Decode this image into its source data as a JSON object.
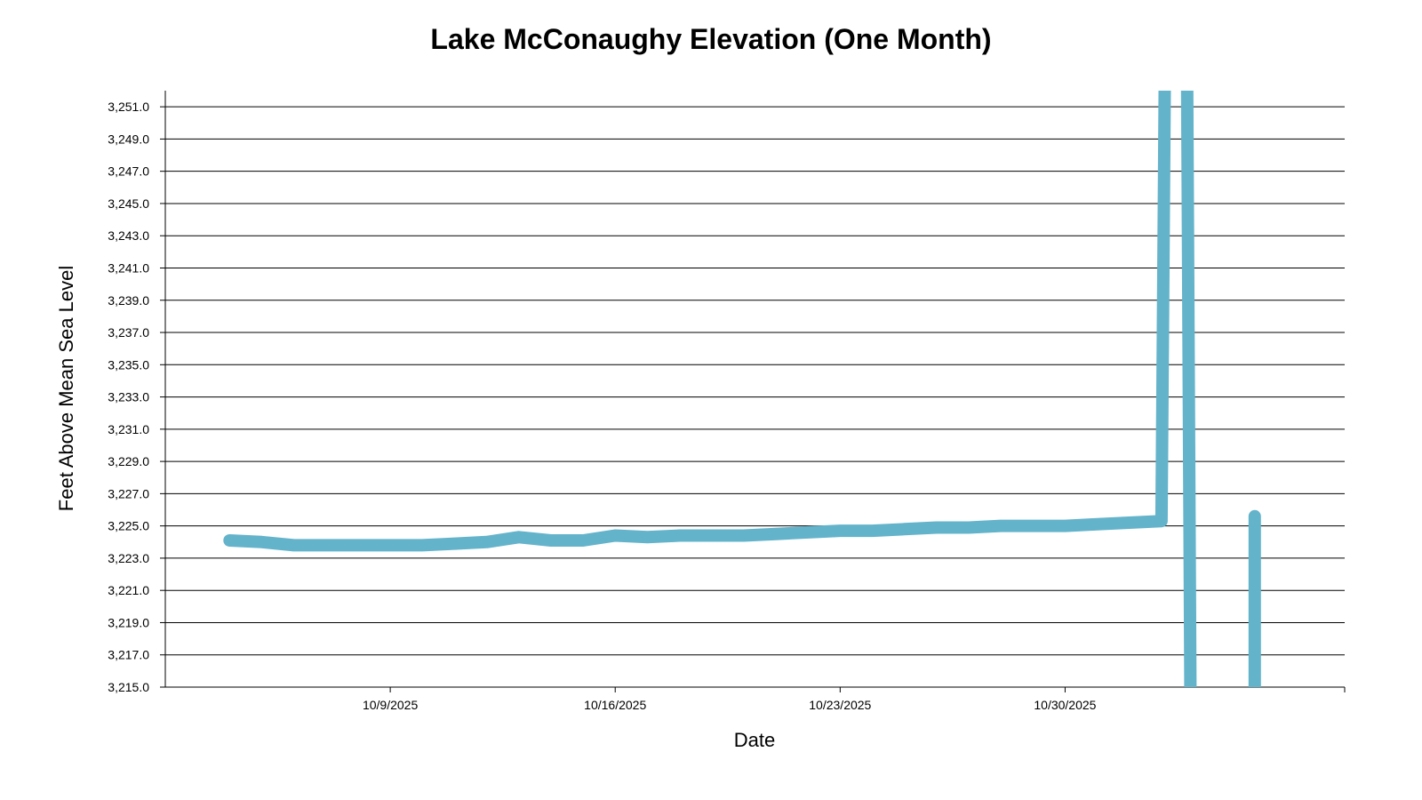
{
  "chart_data": {
    "type": "line",
    "title": "Lake McConaughy Elevation (One Month)",
    "xlabel": "Date",
    "ylabel": "Feet Above Mean Sea Level",
    "x_start": "10/2/2025",
    "x_range_days": [
      0,
      36.7
    ],
    "ylim": [
      3215.0,
      3252.0
    ],
    "yticks": [
      3215.0,
      3217.0,
      3219.0,
      3221.0,
      3223.0,
      3225.0,
      3227.0,
      3229.0,
      3231.0,
      3233.0,
      3235.0,
      3237.0,
      3239.0,
      3241.0,
      3243.0,
      3245.0,
      3247.0,
      3249.0,
      3251.0
    ],
    "ytick_labels": [
      "3,215.0",
      "3,217.0",
      "3,219.0",
      "3,221.0",
      "3,223.0",
      "3,225.0",
      "3,227.0",
      "3,229.0",
      "3,231.0",
      "3,233.0",
      "3,235.0",
      "3,237.0",
      "3,239.0",
      "3,241.0",
      "3,243.0",
      "3,245.0",
      "3,247.0",
      "3,249.0",
      "3,251.0"
    ],
    "xticks": [
      7,
      14,
      21,
      28
    ],
    "xtick_labels": [
      "10/9/2025",
      "10/16/2025",
      "10/23/2025",
      "10/30/2025"
    ],
    "grid": true,
    "color": "#63B3CB",
    "series": [
      {
        "name": "Elevation",
        "segments": [
          [
            [
              2.0,
              3224.1
            ],
            [
              3.0,
              3224.0
            ],
            [
              4.0,
              3223.8
            ],
            [
              5.0,
              3223.8
            ],
            [
              6.0,
              3223.8
            ],
            [
              7.0,
              3223.8
            ],
            [
              8.0,
              3223.8
            ],
            [
              9.0,
              3223.9
            ],
            [
              10.0,
              3224.0
            ],
            [
              11.0,
              3224.3
            ],
            [
              12.0,
              3224.1
            ],
            [
              13.0,
              3224.1
            ],
            [
              14.0,
              3224.4
            ],
            [
              15.0,
              3224.3
            ],
            [
              16.0,
              3224.4
            ],
            [
              17.0,
              3224.4
            ],
            [
              18.0,
              3224.4
            ],
            [
              19.0,
              3224.5
            ],
            [
              20.0,
              3224.6
            ],
            [
              21.0,
              3224.7
            ],
            [
              22.0,
              3224.7
            ],
            [
              23.0,
              3224.8
            ],
            [
              24.0,
              3224.9
            ],
            [
              25.0,
              3224.9
            ],
            [
              26.0,
              3225.0
            ],
            [
              27.0,
              3225.0
            ],
            [
              28.0,
              3225.0
            ],
            [
              29.0,
              3225.1
            ],
            [
              30.0,
              3225.2
            ],
            [
              31.0,
              3225.3
            ],
            [
              31.1,
              3252.0
            ]
          ],
          [
            [
              31.8,
              3252.0
            ],
            [
              31.9,
              3215.0
            ]
          ],
          [
            [
              33.9,
              3225.6
            ],
            [
              33.9,
              3215.0
            ]
          ]
        ]
      }
    ]
  }
}
